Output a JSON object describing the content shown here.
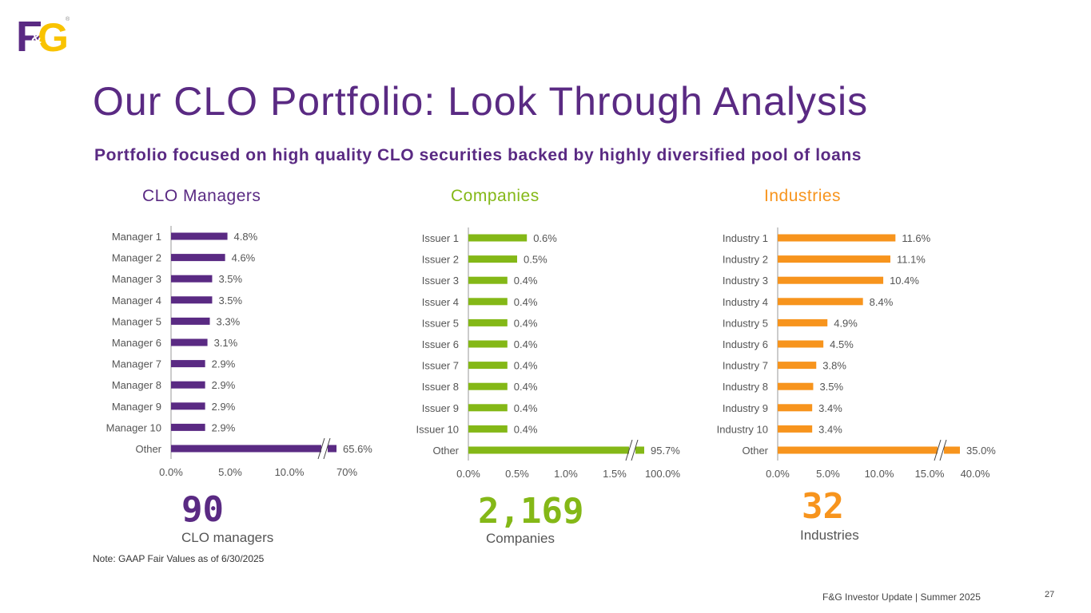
{
  "logo": {
    "text_left": "F",
    "text_amp": "&",
    "text_right": "G",
    "registered": "®"
  },
  "header": {
    "title": "Our CLO Portfolio: Look Through Analysis",
    "subtitle": "Portfolio focused on high quality CLO securities backed by highly diversified pool of loans"
  },
  "chart_data": [
    {
      "type": "bar",
      "orientation": "horizontal",
      "title": "CLO Managers",
      "color": "#5a2a83",
      "categories": [
        "Manager 1",
        "Manager 2",
        "Manager 3",
        "Manager 4",
        "Manager 5",
        "Manager 6",
        "Manager 7",
        "Manager 8",
        "Manager 9",
        "Manager 10",
        "Other"
      ],
      "values": [
        4.8,
        4.6,
        3.5,
        3.5,
        3.3,
        3.1,
        2.9,
        2.9,
        2.9,
        2.9,
        65.6
      ],
      "labels": [
        "4.8%",
        "4.6%",
        "3.5%",
        "3.5%",
        "3.3%",
        "3.1%",
        "2.9%",
        "2.9%",
        "2.9%",
        "2.9%",
        "65.6%"
      ],
      "xlim": [
        0,
        10
      ],
      "axis_break": true,
      "tick_labels": [
        "0.0%",
        "5.0%",
        "10.0%",
        "70%"
      ],
      "xlabel": "",
      "ylabel": "",
      "summary_value": "90",
      "summary_label": "CLO managers"
    },
    {
      "type": "bar",
      "orientation": "horizontal",
      "title": "Companies",
      "color": "#84b817",
      "categories": [
        "Issuer 1",
        "Issuer 2",
        "Issuer 3",
        "Issuer 4",
        "Issuer 5",
        "Issuer 6",
        "Issuer 7",
        "Issuer 8",
        "Issuer 9",
        "Issuer 10",
        "Other"
      ],
      "values": [
        0.6,
        0.5,
        0.4,
        0.4,
        0.4,
        0.4,
        0.4,
        0.4,
        0.4,
        0.4,
        95.7
      ],
      "labels": [
        "0.6%",
        "0.5%",
        "0.4%",
        "0.4%",
        "0.4%",
        "0.4%",
        "0.4%",
        "0.4%",
        "0.4%",
        "0.4%",
        "95.7%"
      ],
      "xlim": [
        0,
        1.5
      ],
      "axis_break": true,
      "tick_labels": [
        "0.0%",
        "0.5%",
        "1.0%",
        "1.5%",
        "100.0%"
      ],
      "xlabel": "",
      "ylabel": "",
      "summary_value": "2,169",
      "summary_label": "Companies"
    },
    {
      "type": "bar",
      "orientation": "horizontal",
      "title": "Industries",
      "color": "#f7941d",
      "categories": [
        "Industry 1",
        "Industry 2",
        "Industry 3",
        "Industry 4",
        "Industry 5",
        "Industry 6",
        "Industry 7",
        "Industry 8",
        "Industry 9",
        "Industry 10",
        "Other"
      ],
      "values": [
        11.6,
        11.1,
        10.4,
        8.4,
        4.9,
        4.5,
        3.8,
        3.5,
        3.4,
        3.4,
        35.0
      ],
      "labels": [
        "11.6%",
        "11.1%",
        "10.4%",
        "8.4%",
        "4.9%",
        "4.5%",
        "3.8%",
        "3.5%",
        "3.4%",
        "3.4%",
        "35.0%"
      ],
      "xlim": [
        0,
        15
      ],
      "axis_break": true,
      "tick_labels": [
        "0.0%",
        "5.0%",
        "10.0%",
        "15.0%",
        "40.0%"
      ],
      "xlabel": "",
      "ylabel": "",
      "summary_value": "32",
      "summary_label": "Industries"
    }
  ],
  "note": "Note: GAAP Fair Values as of 6/30/2025",
  "footer": {
    "text": "F&G Investor Update |  Summer 2025",
    "page_number": "27"
  }
}
